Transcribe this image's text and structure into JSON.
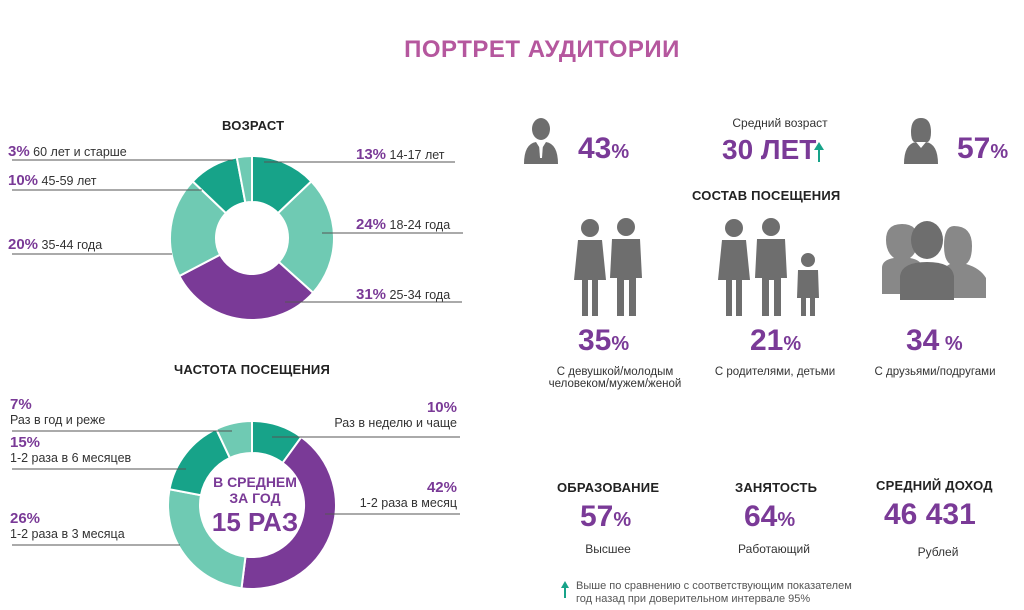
{
  "title": "ПОРТРЕТ АУДИТОРИИ",
  "age": {
    "title": "ВОЗРАСТ",
    "segments": [
      {
        "pct": "13%",
        "label": "14-17 лет"
      },
      {
        "pct": "24%",
        "label": "18-24 года"
      },
      {
        "pct": "31%",
        "label": "25-34 года"
      },
      {
        "pct": "20%",
        "label": "35-44 года"
      },
      {
        "pct": "10%",
        "label": "45-59 лет"
      },
      {
        "pct": "3%",
        "label": "60 лет и старше"
      }
    ]
  },
  "frequency": {
    "title": "ЧАСТОТА ПОСЕЩЕНИЯ",
    "center_line1": "В СРЕДНЕМ",
    "center_line2": "ЗА ГОД",
    "center_big": "15 РАЗ",
    "segments": [
      {
        "pct": "10%",
        "label": "Раз в неделю и чаще"
      },
      {
        "pct": "42%",
        "label": "1-2 раза в месяц"
      },
      {
        "pct": "26%",
        "label": "1-2 раза в 3 месяца"
      },
      {
        "pct": "15%",
        "label": "1-2 раза в 6 месяцев"
      },
      {
        "pct": "7%",
        "label": "Раз в год и реже"
      }
    ]
  },
  "gender": {
    "male_value": "43",
    "male_sym": "%",
    "female_value": "57",
    "female_sym": "%",
    "avg_age_label": "Средний возраст",
    "avg_age_value": "30 ЛЕТ"
  },
  "composition": {
    "title": "СОСТАВ ПОСЕЩЕНИЯ",
    "items": [
      {
        "value": "35",
        "sym": "%",
        "label_line1": "С девушкой/молодым",
        "label_line2": "человеком/мужем/женой"
      },
      {
        "value": "21",
        "sym": "%",
        "label_line1": "С родителями, детьми",
        "label_line2": ""
      },
      {
        "value": "34",
        "sym": " %",
        "label_line1": "С друзьями/подругами",
        "label_line2": ""
      }
    ]
  },
  "stats": {
    "education": {
      "title": "ОБРАЗОВАНИЕ",
      "value": "57",
      "sym": "%",
      "label": "Высшее"
    },
    "employment": {
      "title": "ЗАНЯТОСТЬ",
      "value": "64",
      "sym": "%",
      "label": "Работающий"
    },
    "income": {
      "title": "СРЕДНИЙ ДОХОД",
      "value": "46 431",
      "label": "Рублей"
    }
  },
  "footnote": {
    "line1": "Выше по сравнению с соответствующим показателем",
    "line2": "год назад при доверительном интервале 95%"
  },
  "colors": {
    "teal_dark": "#17a389",
    "teal_light": "#6fcab3",
    "purple": "#7a3a97",
    "gray_icon": "#6e6e6e",
    "title_pink": "#b5579e"
  },
  "chart_data": [
    {
      "type": "pie",
      "title": "ВОЗРАСТ",
      "categories": [
        "14-17 лет",
        "18-24 года",
        "25-34 года",
        "35-44 года",
        "45-59 лет",
        "60 лет и старше"
      ],
      "values": [
        13,
        24,
        31,
        20,
        10,
        3
      ],
      "colors": [
        "#17a389",
        "#6fcab3",
        "#7a3a97",
        "#6fcab3",
        "#17a389",
        "#6fcab3"
      ]
    },
    {
      "type": "pie",
      "title": "ЧАСТОТА ПОСЕЩЕНИЯ",
      "categories": [
        "Раз в неделю и чаще",
        "1-2 раза в месяц",
        "1-2 раза в 3 месяца",
        "1-2 раза в 6 месяцев",
        "Раз в год и реже"
      ],
      "values": [
        10,
        42,
        26,
        15,
        7
      ],
      "colors": [
        "#17a389",
        "#7a3a97",
        "#6fcab3",
        "#17a389",
        "#6fcab3"
      ]
    }
  ]
}
